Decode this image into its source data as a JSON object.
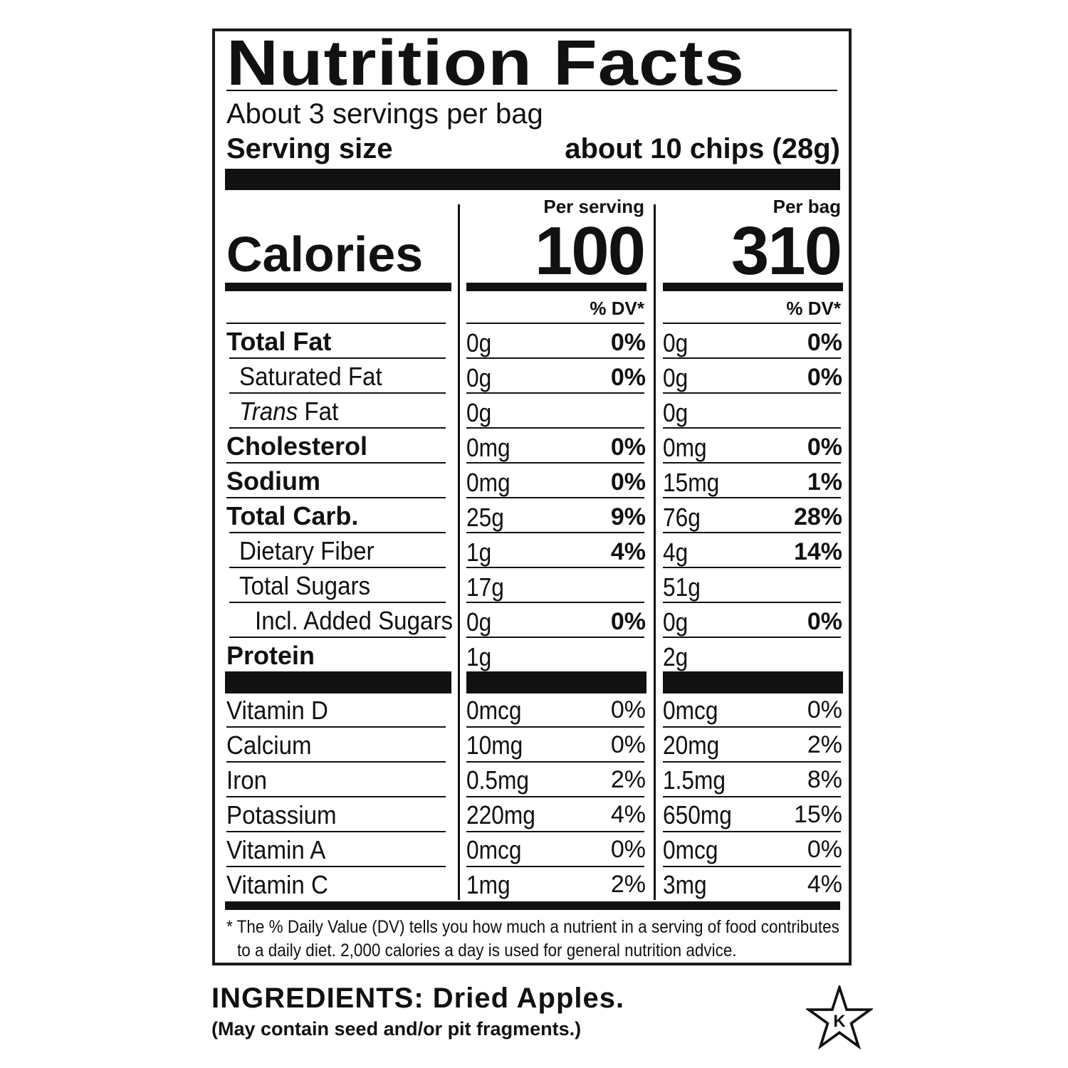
{
  "title": "Nutrition Facts",
  "servings_per_container": "About 3 servings per bag",
  "serving_size_label": "Serving size",
  "serving_size_value": "about 10 chips (28g)",
  "calories_label": "Calories",
  "columns": [
    {
      "header": "Per serving",
      "calories": "100",
      "dv_header": "% DV*"
    },
    {
      "header": "Per bag",
      "calories": "310",
      "dv_header": "% DV*"
    }
  ],
  "nutrients": [
    {
      "label": "Total Fat",
      "style": "bold",
      "indent": 0,
      "values": [
        {
          "amount": "0g",
          "dv": "0%"
        },
        {
          "amount": "0g",
          "dv": "0%"
        }
      ]
    },
    {
      "label": "Saturated Fat",
      "style": "normal",
      "indent": 1,
      "values": [
        {
          "amount": "0g",
          "dv": "0%"
        },
        {
          "amount": "0g",
          "dv": "0%"
        }
      ]
    },
    {
      "label_italic": "Trans",
      "label": " Fat",
      "style": "normal",
      "indent": 1,
      "values": [
        {
          "amount": "0g",
          "dv": ""
        },
        {
          "amount": "0g",
          "dv": ""
        }
      ]
    },
    {
      "label": "Cholesterol",
      "style": "bold",
      "indent": 0,
      "values": [
        {
          "amount": "0mg",
          "dv": "0%"
        },
        {
          "amount": "0mg",
          "dv": "0%"
        }
      ]
    },
    {
      "label": "Sodium",
      "style": "bold",
      "indent": 0,
      "values": [
        {
          "amount": "0mg",
          "dv": "0%"
        },
        {
          "amount": "15mg",
          "dv": "1%"
        }
      ]
    },
    {
      "label": "Total Carb.",
      "style": "bold",
      "indent": 0,
      "values": [
        {
          "amount": "25g",
          "dv": "9%"
        },
        {
          "amount": "76g",
          "dv": "28%"
        }
      ]
    },
    {
      "label": "Dietary Fiber",
      "style": "normal",
      "indent": 1,
      "values": [
        {
          "amount": "1g",
          "dv": "4%"
        },
        {
          "amount": "4g",
          "dv": "14%"
        }
      ]
    },
    {
      "label": "Total Sugars",
      "style": "normal",
      "indent": 1,
      "values": [
        {
          "amount": "17g",
          "dv": ""
        },
        {
          "amount": "51g",
          "dv": ""
        }
      ]
    },
    {
      "label": "Incl. Added Sugars",
      "style": "normal",
      "indent": 2,
      "values": [
        {
          "amount": "0g",
          "dv": "0%"
        },
        {
          "amount": "0g",
          "dv": "0%"
        }
      ]
    },
    {
      "label": "Protein",
      "style": "bold",
      "indent": 0,
      "values": [
        {
          "amount": "1g",
          "dv": ""
        },
        {
          "amount": "2g",
          "dv": ""
        }
      ]
    }
  ],
  "vitamins": [
    {
      "label": "Vitamin D",
      "values": [
        {
          "amount": "0mcg",
          "dv": "0%"
        },
        {
          "amount": "0mcg",
          "dv": "0%"
        }
      ]
    },
    {
      "label": "Calcium",
      "values": [
        {
          "amount": "10mg",
          "dv": "0%"
        },
        {
          "amount": "20mg",
          "dv": "2%"
        }
      ]
    },
    {
      "label": "Iron",
      "values": [
        {
          "amount": "0.5mg",
          "dv": "2%"
        },
        {
          "amount": "1.5mg",
          "dv": "8%"
        }
      ]
    },
    {
      "label": "Potassium",
      "values": [
        {
          "amount": "220mg",
          "dv": "4%"
        },
        {
          "amount": "650mg",
          "dv": "15%"
        }
      ]
    },
    {
      "label": "Vitamin A",
      "values": [
        {
          "amount": "0mcg",
          "dv": "0%"
        },
        {
          "amount": "0mcg",
          "dv": "0%"
        }
      ]
    },
    {
      "label": "Vitamin C",
      "values": [
        {
          "amount": "1mg",
          "dv": "2%"
        },
        {
          "amount": "3mg",
          "dv": "4%"
        }
      ]
    }
  ],
  "footnote_line1": "* The % Daily Value (DV) tells you how much a nutrient in a serving of food contributes",
  "footnote_line2": "to a daily diet. 2,000 calories a day is used for general nutrition advice.",
  "ingredients": "INGREDIENTS: Dried Apples.",
  "allergen_note": "(May contain seed and/or pit fragments.)",
  "kosher_symbol": "K",
  "icons": {
    "kosher": "kosher-star-icon"
  }
}
